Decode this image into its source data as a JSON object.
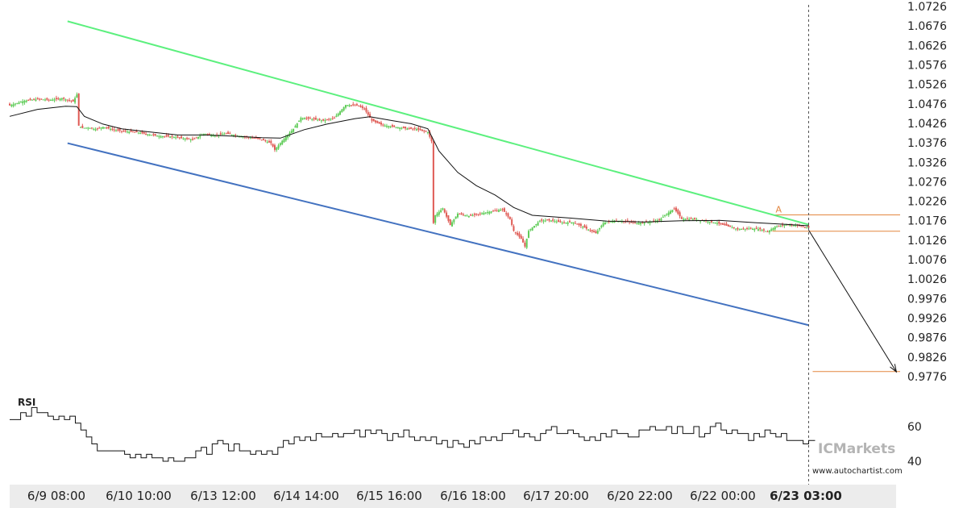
{
  "chart_data": [
    {
      "type": "candlestick",
      "instrument": "",
      "title": "",
      "y_axis": {
        "ticks": [
          "1.0726",
          "1.0676",
          "1.0626",
          "1.0576",
          "1.0526",
          "1.0476",
          "1.0426",
          "1.0376",
          "1.0326",
          "1.0276",
          "1.0226",
          "1.0176",
          "1.0126",
          "1.0076",
          "1.0026",
          "0.9976",
          "0.9926",
          "0.9876",
          "0.9826",
          "0.9776"
        ],
        "ylim": [
          0.9766,
          1.073
        ]
      },
      "x_axis": {
        "ticks": [
          "6/9 08:00",
          "6/10 10:00",
          "6/13 12:00",
          "6/14 14:00",
          "6/15 16:00",
          "6/16 18:00",
          "6/17 20:00",
          "6/20 22:00",
          "6/22 00:00",
          "6/23 03:00"
        ],
        "highlighted_tick": "6/23 03:00"
      },
      "price_path": [
        [
          0,
          1.0472
        ],
        [
          8,
          1.0484
        ],
        [
          15,
          1.0488
        ],
        [
          22,
          1.0486
        ],
        [
          28,
          1.049
        ],
        [
          34,
          1.0482
        ],
        [
          36,
          1.05
        ],
        [
          37,
          1.042
        ],
        [
          39,
          1.0414
        ],
        [
          42,
          1.0415
        ],
        [
          46,
          1.0411
        ],
        [
          50,
          1.0417
        ],
        [
          56,
          1.0409
        ],
        [
          62,
          1.0405
        ],
        [
          68,
          1.0403
        ],
        [
          74,
          1.0398
        ],
        [
          80,
          1.0393
        ],
        [
          86,
          1.0392
        ],
        [
          92,
          1.0388
        ],
        [
          98,
          1.0384
        ],
        [
          104,
          1.0399
        ],
        [
          110,
          1.0395
        ],
        [
          116,
          1.04
        ],
        [
          122,
          1.0394
        ],
        [
          128,
          1.039
        ],
        [
          134,
          1.0386
        ],
        [
          140,
          1.0375
        ],
        [
          142,
          1.0358
        ],
        [
          146,
          1.0381
        ],
        [
          152,
          1.0412
        ],
        [
          156,
          1.044
        ],
        [
          162,
          1.0437
        ],
        [
          168,
          1.0433
        ],
        [
          174,
          1.044
        ],
        [
          180,
          1.0473
        ],
        [
          186,
          1.0472
        ],
        [
          190,
          1.0463
        ],
        [
          194,
          1.0433
        ],
        [
          200,
          1.0421
        ],
        [
          206,
          1.0417
        ],
        [
          212,
          1.0413
        ],
        [
          218,
          1.0411
        ],
        [
          224,
          1.0403
        ],
        [
          226,
          1.038
        ],
        [
          227,
          1.017
        ],
        [
          228,
          1.019
        ],
        [
          232,
          1.0208
        ],
        [
          236,
          1.0165
        ],
        [
          240,
          1.0194
        ],
        [
          246,
          1.0188
        ],
        [
          252,
          1.0194
        ],
        [
          258,
          1.02
        ],
        [
          264,
          1.0205
        ],
        [
          268,
          1.018
        ],
        [
          270,
          1.015
        ],
        [
          274,
          1.013
        ],
        [
          276,
          1.011
        ],
        [
          278,
          1.015
        ],
        [
          284,
          1.0176
        ],
        [
          290,
          1.0177
        ],
        [
          296,
          1.0171
        ],
        [
          302,
          1.0172
        ],
        [
          308,
          1.0158
        ],
        [
          314,
          1.0144
        ],
        [
          318,
          1.017
        ],
        [
          324,
          1.0176
        ],
        [
          330,
          1.0174
        ],
        [
          336,
          1.017
        ],
        [
          342,
          1.0172
        ],
        [
          348,
          1.0178
        ],
        [
          352,
          1.0194
        ],
        [
          356,
          1.0207
        ],
        [
          360,
          1.0181
        ],
        [
          366,
          1.018
        ],
        [
          372,
          1.0176
        ],
        [
          378,
          1.0171
        ],
        [
          384,
          1.0163
        ],
        [
          390,
          1.0154
        ],
        [
          396,
          1.0156
        ],
        [
          402,
          1.0154
        ],
        [
          406,
          1.0148
        ],
        [
          410,
          1.016
        ],
        [
          416,
          1.0166
        ],
        [
          422,
          1.0164
        ],
        [
          426,
          1.0159
        ],
        [
          428,
          1.0158
        ]
      ],
      "moving_average": [
        [
          0,
          1.0444
        ],
        [
          15,
          1.0462
        ],
        [
          30,
          1.047
        ],
        [
          36,
          1.0469
        ],
        [
          40,
          1.0444
        ],
        [
          50,
          1.0424
        ],
        [
          60,
          1.0412
        ],
        [
          75,
          1.0404
        ],
        [
          90,
          1.0396
        ],
        [
          105,
          1.0396
        ],
        [
          120,
          1.0393
        ],
        [
          135,
          1.0389
        ],
        [
          145,
          1.0388
        ],
        [
          158,
          1.041
        ],
        [
          170,
          1.0424
        ],
        [
          185,
          1.0438
        ],
        [
          193,
          1.0443
        ],
        [
          205,
          1.0433
        ],
        [
          215,
          1.0425
        ],
        [
          224,
          1.0412
        ],
        [
          230,
          1.0355
        ],
        [
          240,
          1.03
        ],
        [
          250,
          1.0266
        ],
        [
          260,
          1.0242
        ],
        [
          270,
          1.021
        ],
        [
          280,
          1.019
        ],
        [
          300,
          1.0183
        ],
        [
          320,
          1.0175
        ],
        [
          340,
          1.0173
        ],
        [
          360,
          1.0176
        ],
        [
          380,
          1.0177
        ],
        [
          400,
          1.0171
        ],
        [
          415,
          1.0167
        ],
        [
          428,
          1.0163
        ]
      ],
      "channel": {
        "upper": {
          "start": [
            31,
            1.0688
          ],
          "end": [
            428,
            1.0166
          ],
          "color": "#5cf07e"
        },
        "lower": {
          "start": [
            31,
            1.0375
          ],
          "end": [
            428,
            0.9908
          ],
          "color": "#4372c0"
        }
      },
      "levels": [
        {
          "value": 1.0191,
          "color": "#e3863f"
        },
        {
          "value": 1.0149,
          "color": "#e3863f"
        },
        {
          "value": 0.9789,
          "color": "#e3863f"
        }
      ],
      "point_label": "A",
      "forecast_arrow": {
        "start": [
          428,
          1.0152
        ],
        "end": [
          475,
          0.9788
        ]
      },
      "current_time_marker": 428,
      "rsi": {
        "label": "RSI",
        "ticks": [
          "60",
          "40"
        ],
        "ylim": [
          30,
          74
        ],
        "values": [
          64,
          64,
          68,
          66,
          71,
          68,
          68,
          66,
          64,
          66,
          64,
          66,
          62,
          58,
          54,
          50,
          46,
          46,
          46,
          46,
          46,
          44,
          42,
          44,
          42,
          44,
          42,
          42,
          40,
          42,
          40,
          40,
          42,
          42,
          46,
          48,
          44,
          50,
          52,
          50,
          46,
          50,
          46,
          46,
          44,
          46,
          44,
          46,
          44,
          48,
          52,
          50,
          54,
          52,
          54,
          52,
          56,
          54,
          54,
          56,
          54,
          56,
          56,
          58,
          54,
          58,
          56,
          58,
          56,
          52,
          56,
          54,
          58,
          54,
          52,
          54,
          52,
          54,
          50,
          52,
          48,
          52,
          50,
          48,
          52,
          50,
          54,
          52,
          54,
          52,
          56,
          56,
          58,
          54,
          56,
          54,
          52,
          56,
          58,
          60,
          56,
          56,
          58,
          56,
          54,
          52,
          54,
          52,
          56,
          54,
          58,
          56,
          56,
          54,
          54,
          58,
          58,
          60,
          58,
          58,
          60,
          56,
          60,
          56,
          56,
          60,
          54,
          56,
          60,
          62,
          58,
          56,
          58,
          56,
          56,
          52,
          56,
          54,
          58,
          56,
          54,
          56,
          52,
          52,
          52,
          50,
          52
        ]
      }
    }
  ],
  "branding": {
    "broker": "ICMarkets",
    "website": "www.autochartist.com"
  }
}
